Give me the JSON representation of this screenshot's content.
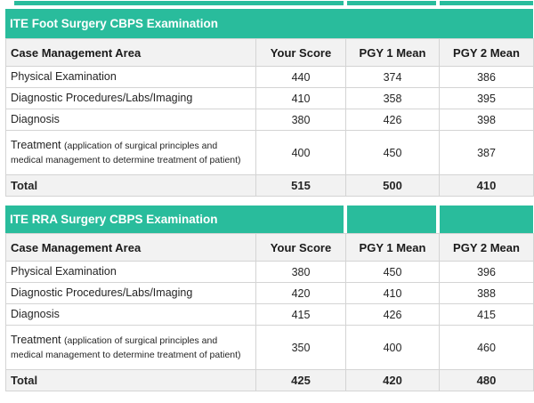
{
  "colors": {
    "accent_teal": "#29bc9c",
    "header_row_bg": "#f2f2f2",
    "total_row_bg": "#f2f2f2",
    "grid_border": "#d4d4d4",
    "title_text": "#ffffff",
    "body_text": "#252525"
  },
  "tables": [
    {
      "title": "ITE Foot Surgery CBPS Examination",
      "columns": [
        "Case Management Area",
        "Your Score",
        "PGY 1 Mean",
        "PGY 2 Mean"
      ],
      "rows": [
        {
          "area": "Physical Examination",
          "your_score": "440",
          "pgy1_mean": "374",
          "pgy2_mean": "386"
        },
        {
          "area": "Diagnostic Procedures/Labs/Imaging",
          "your_score": "410",
          "pgy1_mean": "358",
          "pgy2_mean": "395"
        },
        {
          "area": "Diagnosis",
          "your_score": "380",
          "pgy1_mean": "426",
          "pgy2_mean": "398"
        },
        {
          "area": "Treatment",
          "area_detail": "(application of surgical principles and medical management to determine treatment of patient)",
          "your_score": "400",
          "pgy1_mean": "450",
          "pgy2_mean": "387"
        }
      ],
      "total": {
        "label": "Total",
        "your_score": "515",
        "pgy1_mean": "500",
        "pgy2_mean": "410"
      }
    },
    {
      "title": "ITE RRA Surgery CBPS Examination",
      "columns": [
        "Case Management Area",
        "Your Score",
        "PGY 1 Mean",
        "PGY 2 Mean"
      ],
      "rows": [
        {
          "area": "Physical Examination",
          "your_score": "380",
          "pgy1_mean": "450",
          "pgy2_mean": "396"
        },
        {
          "area": "Diagnostic Procedures/Labs/Imaging",
          "your_score": "420",
          "pgy1_mean": "410",
          "pgy2_mean": "388"
        },
        {
          "area": "Diagnosis",
          "your_score": "415",
          "pgy1_mean": "426",
          "pgy2_mean": "415"
        },
        {
          "area": "Treatment",
          "area_detail": "(application of surgical principles and medical management to determine treatment of patient)",
          "your_score": "350",
          "pgy1_mean": "400",
          "pgy2_mean": "460"
        }
      ],
      "total": {
        "label": "Total",
        "your_score": "425",
        "pgy1_mean": "420",
        "pgy2_mean": "480"
      }
    }
  ]
}
